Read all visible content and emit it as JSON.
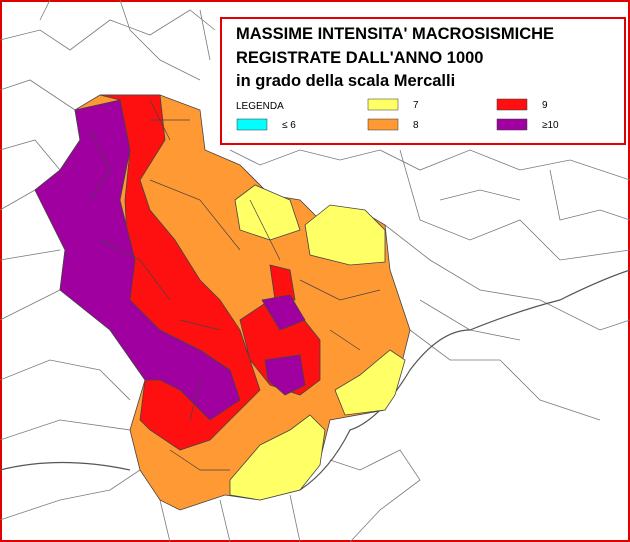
{
  "header": {
    "lines": [
      "MASSIME INTENSITA' MACROSISMICHE",
      "REGISTRATE DALL'ANNO 1000",
      "in grado della scala Mercalli"
    ]
  },
  "legend": {
    "title": "LEGENDA",
    "items": [
      {
        "label": "≤ 6",
        "color": "#00ffff"
      },
      {
        "label": "7",
        "color": "#ffff66"
      },
      {
        "label": "8",
        "color": "#ff9933"
      },
      {
        "label": "9",
        "color": "#ff1010"
      },
      {
        "label": "≥10",
        "color": "#a000a0"
      }
    ]
  }
}
